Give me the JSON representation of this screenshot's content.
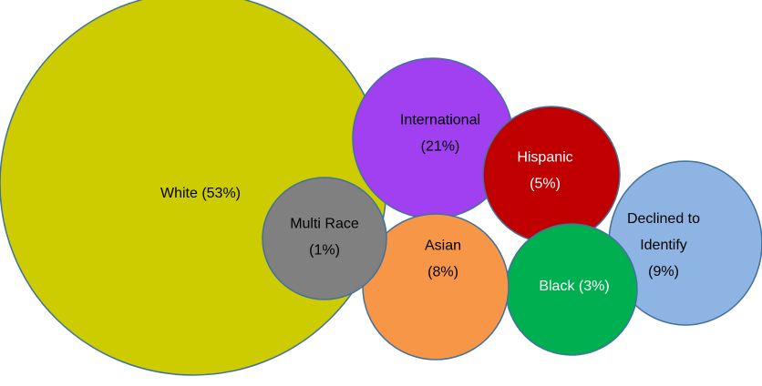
{
  "nodes": [
    {
      "lines": [
        "White (53%)"
      ]
    },
    {
      "lines": [
        "International",
        "(21%)"
      ]
    },
    {
      "lines": [
        "Hispanic",
        "(5%)"
      ]
    },
    {
      "lines": [
        "Declined to",
        "Identify",
        "(9%)"
      ]
    },
    {
      "lines": [
        "Black (3%)"
      ]
    },
    {
      "lines": [
        "Asian",
        "(8%)"
      ]
    },
    {
      "lines": [
        "Multi Race",
        "(1%)"
      ]
    }
  ]
}
